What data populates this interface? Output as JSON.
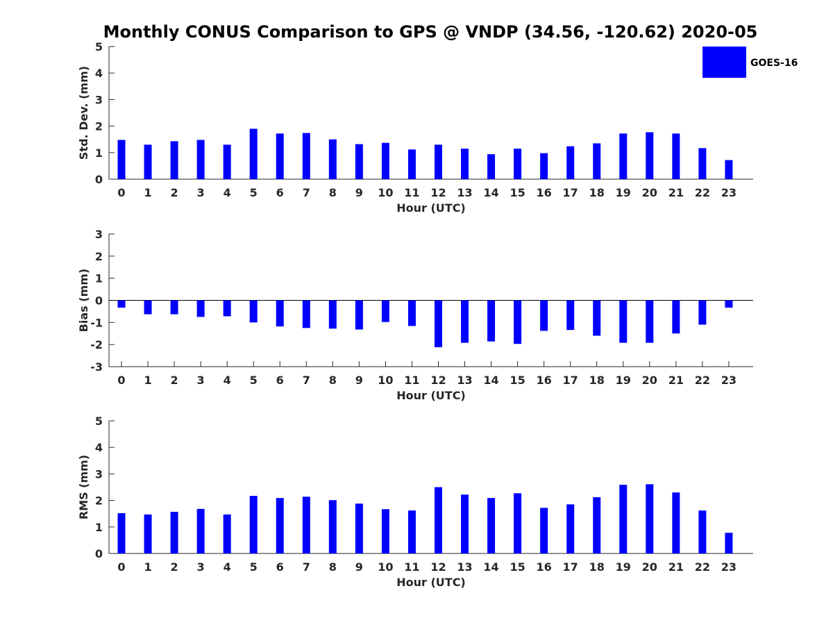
{
  "title": "Monthly CONUS Comparison to GPS @ VNDP (34.56, -120.62) 2020-05",
  "legend": {
    "label": "GOES-16",
    "color": "#0000ff"
  },
  "chart_data": [
    {
      "type": "bar",
      "name": "std-dev",
      "series_name": "GOES-16",
      "color": "#0000ff",
      "categories": [
        "0",
        "1",
        "2",
        "3",
        "4",
        "5",
        "6",
        "7",
        "8",
        "9",
        "10",
        "11",
        "12",
        "13",
        "14",
        "15",
        "16",
        "17",
        "18",
        "19",
        "20",
        "21",
        "22",
        "23"
      ],
      "values": [
        1.48,
        1.3,
        1.43,
        1.48,
        1.3,
        1.9,
        1.72,
        1.74,
        1.5,
        1.32,
        1.37,
        1.12,
        1.3,
        1.15,
        0.94,
        1.15,
        0.98,
        1.24,
        1.35,
        1.72,
        1.77,
        1.72,
        1.17,
        0.72
      ],
      "ylim": [
        0,
        5
      ],
      "yticks": [
        "0",
        "1",
        "2",
        "3",
        "4",
        "5"
      ],
      "xlabel": "Hour (UTC)",
      "ylabel": "Std. Dev. (mm)"
    },
    {
      "type": "bar",
      "name": "bias",
      "series_name": "GOES-16",
      "color": "#0000ff",
      "categories": [
        "0",
        "1",
        "2",
        "3",
        "4",
        "5",
        "6",
        "7",
        "8",
        "9",
        "10",
        "11",
        "12",
        "13",
        "14",
        "15",
        "16",
        "17",
        "18",
        "19",
        "20",
        "21",
        "22",
        "23"
      ],
      "values": [
        -0.33,
        -0.63,
        -0.63,
        -0.75,
        -0.72,
        -1.0,
        -1.18,
        -1.25,
        -1.28,
        -1.32,
        -0.98,
        -1.16,
        -2.12,
        -1.92,
        -1.86,
        -1.97,
        -1.38,
        -1.34,
        -1.6,
        -1.92,
        -1.92,
        -1.5,
        -1.1,
        -0.33
      ],
      "ylim": [
        -3,
        3
      ],
      "yticks": [
        "-3",
        "-2",
        "-1",
        "0",
        "1",
        "2",
        "3"
      ],
      "xlabel": "Hour (UTC)",
      "ylabel": "Bias (mm)"
    },
    {
      "type": "bar",
      "name": "rms",
      "series_name": "GOES-16",
      "color": "#0000ff",
      "categories": [
        "0",
        "1",
        "2",
        "3",
        "4",
        "5",
        "6",
        "7",
        "8",
        "9",
        "10",
        "11",
        "12",
        "13",
        "14",
        "15",
        "16",
        "17",
        "18",
        "19",
        "20",
        "21",
        "22",
        "23"
      ],
      "values": [
        1.52,
        1.47,
        1.57,
        1.68,
        1.47,
        2.17,
        2.09,
        2.14,
        2.01,
        1.88,
        1.67,
        1.62,
        2.5,
        2.22,
        2.09,
        2.27,
        1.72,
        1.85,
        2.12,
        2.59,
        2.61,
        2.3,
        1.62,
        0.78
      ],
      "ylim": [
        0,
        5
      ],
      "yticks": [
        "0",
        "1",
        "2",
        "3",
        "4",
        "5"
      ],
      "xlabel": "Hour (UTC)",
      "ylabel": "RMS (mm)"
    }
  ]
}
